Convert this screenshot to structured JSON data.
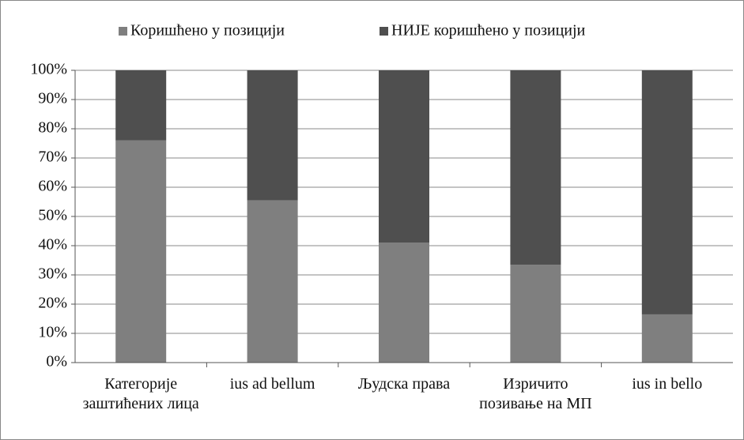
{
  "chart_data": {
    "type": "stacked_bar_100",
    "categories": [
      "Категорије заштићених лица",
      "ius ad bellum",
      "Људска права",
      "Изричито позивање на МП",
      "ius in bello"
    ],
    "series": [
      {
        "name": "Коришћено у позицији",
        "color": "#7f7f7f",
        "values": [
          76,
          55.5,
          41,
          33.5,
          16.5
        ]
      },
      {
        "name": "НИЈЕ коришћено у позицији",
        "color": "#4f4f4f",
        "values": [
          24,
          44.5,
          59,
          66.5,
          83.5
        ]
      }
    ],
    "ylim": [
      0,
      100
    ],
    "yticks": [
      {
        "value": 0,
        "label": "0%"
      },
      {
        "value": 10,
        "label": "10%"
      },
      {
        "value": 20,
        "label": "20%"
      },
      {
        "value": 30,
        "label": "30%"
      },
      {
        "value": 40,
        "label": "40%"
      },
      {
        "value": 50,
        "label": "50%"
      },
      {
        "value": 60,
        "label": "60%"
      },
      {
        "value": 70,
        "label": "70%"
      },
      {
        "value": 80,
        "label": "80%"
      },
      {
        "value": 90,
        "label": "90%"
      },
      {
        "value": 100,
        "label": "100%"
      }
    ],
    "grid": true,
    "legend": "top"
  }
}
